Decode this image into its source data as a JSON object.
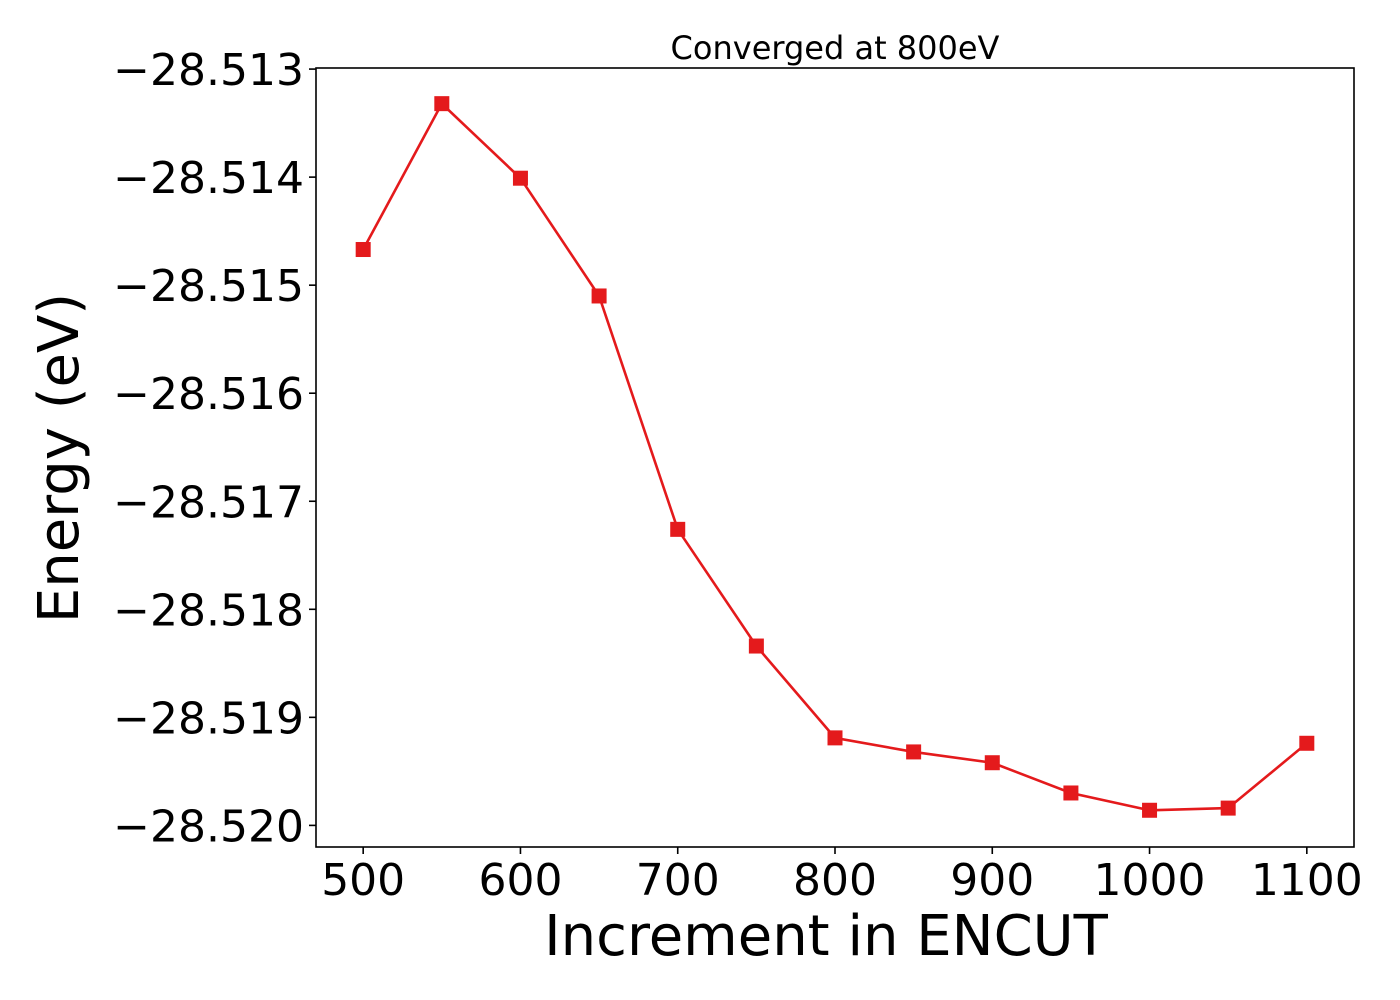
{
  "chart_data": {
    "type": "line",
    "title": "Converged at 800eV",
    "xlabel": "Increment in ENCUT",
    "ylabel": "Energy (eV)",
    "xlim": [
      470,
      1130
    ],
    "ylim": [
      -28.5202,
      -28.51299
    ],
    "xticks": [
      500,
      600,
      700,
      800,
      900,
      1000,
      1100
    ],
    "xtick_labels": [
      "500",
      "600",
      "700",
      "800",
      "900",
      "1000",
      "1100"
    ],
    "yticks": [
      -28.513,
      -28.514,
      -28.515,
      -28.516,
      -28.517,
      -28.518,
      -28.519,
      -28.52
    ],
    "ytick_labels": [
      "−28.513",
      "−28.514",
      "−28.515",
      "−28.516",
      "−28.517",
      "−28.518",
      "−28.519",
      "−28.520"
    ],
    "grid": false,
    "series": [
      {
        "name": "Energy",
        "color": "#e41a1c",
        "marker": "square",
        "x": [
          500,
          550,
          600,
          650,
          700,
          750,
          800,
          850,
          900,
          950,
          1000,
          1050,
          1100
        ],
        "y": [
          -28.51467,
          -28.51332,
          -28.51401,
          -28.5151,
          -28.51726,
          -28.51834,
          -28.51919,
          -28.51932,
          -28.51942,
          -28.5197,
          -28.51986,
          -28.51984,
          -28.51924
        ]
      }
    ]
  }
}
